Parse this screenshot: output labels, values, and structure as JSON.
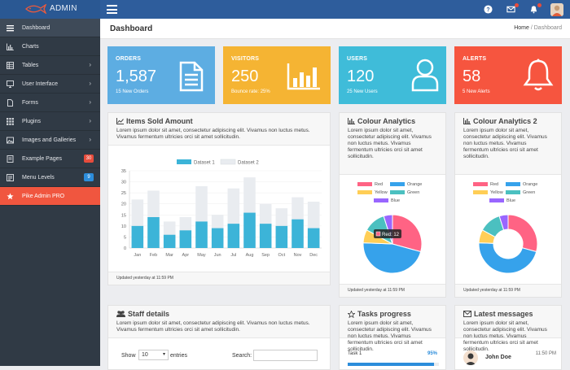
{
  "brand": {
    "name": "ADMIN"
  },
  "header": {
    "title": "Dashboard",
    "breadcrumb": {
      "home": "Home",
      "sep": "/",
      "current": "Dashboard"
    }
  },
  "sidebar": {
    "items": [
      {
        "label": "Dashboard",
        "icon": "bars-icon"
      },
      {
        "label": "Charts",
        "icon": "chart-icon"
      },
      {
        "label": "Tables",
        "icon": "table-icon"
      },
      {
        "label": "User Interface",
        "icon": "monitor-icon"
      },
      {
        "label": "Forms",
        "icon": "file-icon"
      },
      {
        "label": "Plugins",
        "icon": "grid-icon"
      },
      {
        "label": "Images and Galleries",
        "icon": "image-icon"
      },
      {
        "label": "Example Pages",
        "icon": "doc-icon",
        "badge": "30",
        "badge_color": "#e74c3c"
      },
      {
        "label": "Menu Levels",
        "icon": "list-icon",
        "badge": "9",
        "badge_color": "#2c8ddb"
      },
      {
        "label": "Pike Admin PRO",
        "icon": "star-icon"
      }
    ]
  },
  "cards": [
    {
      "label": "ORDERS",
      "value": "1,587",
      "sub": "15 New Orders",
      "color": "#5dade2"
    },
    {
      "label": "VISITORS",
      "value": "250",
      "sub": "Bounce rate: 25%",
      "color": "#f5b433"
    },
    {
      "label": "USERS",
      "value": "120",
      "sub": "25 New Users",
      "color": "#3fbcd9"
    },
    {
      "label": "ALERTS",
      "value": "58",
      "sub": "5 New Alerts",
      "color": "#f6553f"
    }
  ],
  "items_sold": {
    "title": "Items Sold Amount",
    "desc": "Lorem ipsum dolor sit amet, consectetur adipiscing elit. Vivamus non luctus metus. Vivamus fermentum ultricies orci sit amet sollicitudin.",
    "footer": "Updated yesterday at 11:59 PM"
  },
  "colour_analytics": {
    "title": "Colour Analytics",
    "desc": "Lorem ipsum dolor sit amet, consectetur adipiscing elit. Vivamus non luctus metus. Vivamus fermentum ultricies orci sit amet sollicitudin.",
    "footer": "Updated yesterday at 11:59 PM",
    "tooltip": "Red: 12"
  },
  "colour_analytics2": {
    "title": "Colour Analytics 2",
    "desc": "Lorem ipsum dolor sit amet, consectetur adipiscing elit. Vivamus non luctus metus. Vivamus fermentum ultricies orci sit amet sollicitudin.",
    "footer": "Updated yesterday at 11:59 PM"
  },
  "staff": {
    "title": "Staff details",
    "desc": "Lorem ipsum dolor sit amet, consectetur adipiscing elit. Vivamus non luctus metus. Vivamus fermentum ultricies orci sit amet sollicitudin.",
    "show_label": "Show",
    "show_value": "10",
    "entries_label": "entries",
    "search_label": "Search:"
  },
  "tasks": {
    "title": "Tasks progress",
    "desc": "Lorem ipsum dolor sit amet, consectetur adipiscing elit. Vivamus non luctus metus. Vivamus fermentum ultricies orci sit amet sollicitudin.",
    "task1": "Task 1",
    "task1_pct": "95%",
    "task1_fraction": 0.95
  },
  "messages": {
    "title": "Latest messages",
    "desc": "Lorem ipsum dolor sit amet, consectetur adipiscing elit. Vivamus non luctus metus. Vivamus fermentum ultricies orci sit amet sollicitudin.",
    "name": "John Doe",
    "time": "11:50 PM"
  },
  "chart_data": [
    {
      "type": "bar",
      "categories": [
        "Jan",
        "Feb",
        "Mar",
        "Apr",
        "May",
        "Jun",
        "Jul",
        "Aug",
        "Sep",
        "Oct",
        "Nov",
        "Dec"
      ],
      "series": [
        {
          "name": "Dataset 1",
          "color": "#3cb4d8",
          "values": [
            10,
            14,
            6,
            8,
            12,
            9,
            11,
            16,
            11,
            10,
            13,
            9
          ]
        },
        {
          "name": "Dataset 2",
          "color": "#e9ecf0",
          "values": [
            22,
            26,
            12,
            14,
            28,
            15,
            27,
            32,
            20,
            18,
            23,
            21
          ]
        }
      ],
      "yticks": [
        0,
        5,
        10,
        15,
        20,
        25,
        30,
        35
      ],
      "ylim": [
        0,
        35
      ],
      "legend": "top"
    },
    {
      "type": "pie",
      "legend": "top",
      "slices": [
        {
          "name": "Red",
          "color": "#ff6384",
          "value": 12
        },
        {
          "name": "Orange",
          "color": "#36a2eb",
          "value": 19
        },
        {
          "name": "Yellow",
          "color": "#ffce56",
          "value": 3
        },
        {
          "name": "Green",
          "color": "#4bc0c0",
          "value": 5
        },
        {
          "name": "Blue",
          "color": "#9966ff",
          "value": 2
        }
      ]
    },
    {
      "type": "pie",
      "legend": "top",
      "slices": [
        {
          "name": "Red",
          "color": "#ff6384",
          "value": 12
        },
        {
          "name": "Orange",
          "color": "#36a2eb",
          "value": 19
        },
        {
          "name": "Yellow",
          "color": "#ffce56",
          "value": 3
        },
        {
          "name": "Green",
          "color": "#4bc0c0",
          "value": 5
        },
        {
          "name": "Blue",
          "color": "#9966ff",
          "value": 2
        }
      ]
    }
  ]
}
